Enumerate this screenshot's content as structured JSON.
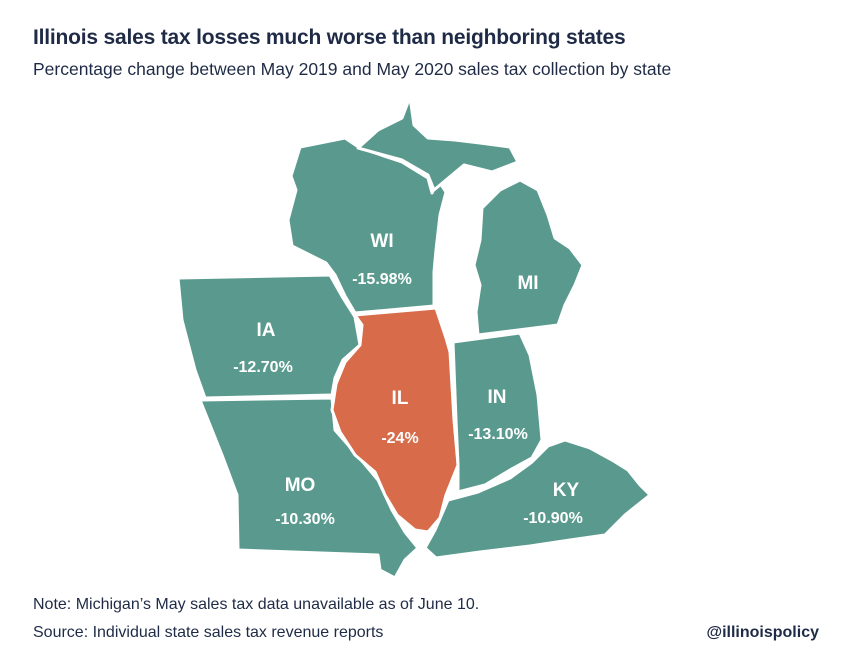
{
  "title": "Illinois sales tax losses much worse than neighboring states",
  "subtitle": "Percentage change between May 2019 and May 2020 sales tax collection by state",
  "colors": {
    "neighbor": "#5a9a8e",
    "illinois": "#d76b4a",
    "text": "#1f2b46"
  },
  "states": {
    "WI": {
      "abbr": "WI",
      "value": "-15.98%"
    },
    "MI": {
      "abbr": "MI",
      "value": ""
    },
    "IA": {
      "abbr": "IA",
      "value": "-12.70%"
    },
    "IL": {
      "abbr": "IL",
      "value": "-24%"
    },
    "IN": {
      "abbr": "IN",
      "value": "-13.10%"
    },
    "MO": {
      "abbr": "MO",
      "value": "-10.30%"
    },
    "KY": {
      "abbr": "KY",
      "value": "-10.90%"
    }
  },
  "note": "Note: Michigan’s May sales tax data unavailable as of June 10.",
  "source": "Source: Individual state sales tax revenue reports",
  "handle": "@illinoispolicy"
}
